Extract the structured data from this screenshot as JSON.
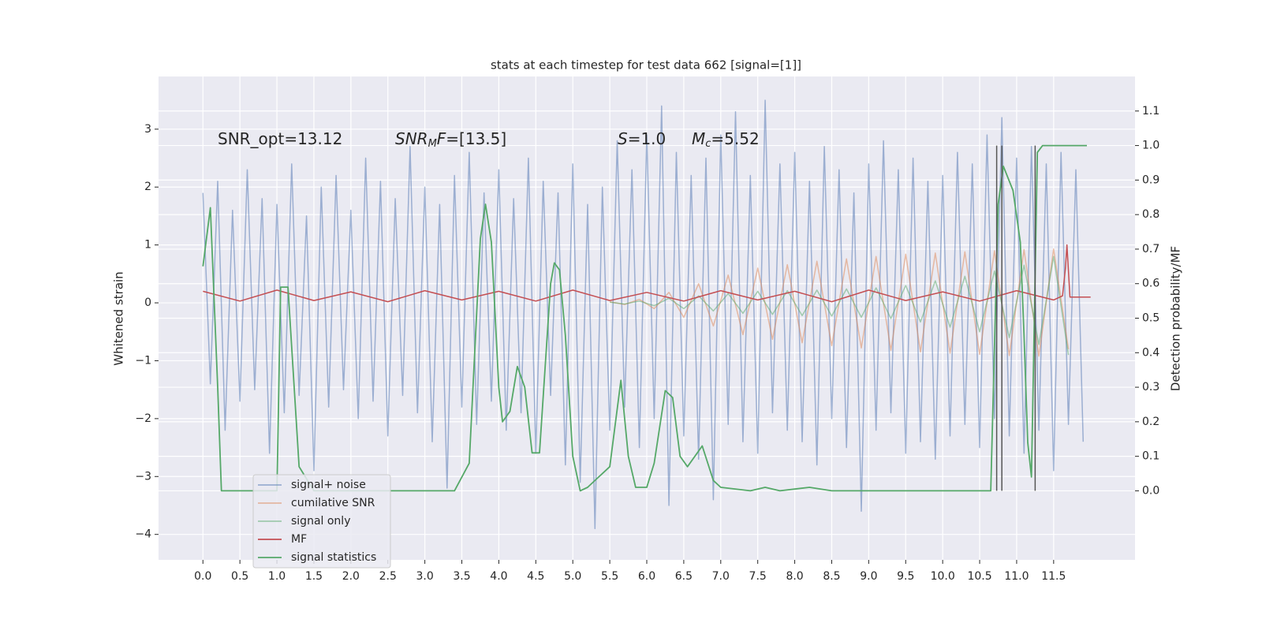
{
  "chart_data": {
    "type": "line",
    "title": "stats at each timestep for test data 662 [signal=[1]]",
    "y_label": "Whitened strain",
    "y2_label": "Detection probability/MF",
    "annotations": [
      [
        "SNR_opt=13.12"
      ],
      [
        "SNR",
        "M",
        "F",
        "=[13.5]"
      ],
      [
        "S",
        "=1.0"
      ],
      [
        "M",
        "c",
        "=5.52"
      ]
    ],
    "xlim": [
      -0.6,
      12.6
    ],
    "ylim": [
      -4.44,
      3.91
    ],
    "y2lim": [
      -0.2,
      1.2
    ],
    "xticks": [
      {
        "value": 0,
        "label": "0.0"
      },
      0.5,
      {
        "value": 1,
        "label": "1.0"
      },
      1.5,
      {
        "value": 2,
        "label": "2.0"
      },
      2.5,
      {
        "value": 3,
        "label": "3.0"
      },
      3.5,
      {
        "value": 4,
        "label": "4.0"
      },
      4.5,
      {
        "value": 5,
        "label": "5.0"
      },
      5.5,
      {
        "value": 6,
        "label": "6.0"
      },
      6.5,
      {
        "value": 7,
        "label": "7.0"
      },
      7.5,
      {
        "value": 8,
        "label": "8.0"
      },
      8.5,
      {
        "value": 9,
        "label": "9.0"
      },
      9.5,
      {
        "value": 10,
        "label": "10.0"
      },
      10.5,
      {
        "value": 11,
        "label": "11.0"
      },
      11.5
    ],
    "yticks": [
      {
        "value": -4,
        "label": "−4"
      },
      {
        "value": -3,
        "label": "−3"
      },
      {
        "value": -2,
        "label": "−2"
      },
      {
        "value": -1,
        "label": "−1"
      },
      0,
      1,
      2,
      3
    ],
    "y2ticks": [
      {
        "value": 0,
        "label": "0.0"
      },
      0.1,
      0.2,
      0.3,
      0.4,
      0.5,
      0.6,
      0.7,
      0.8,
      0.9,
      {
        "value": 1,
        "label": "1.0"
      },
      1.1
    ],
    "grid": true,
    "series": [
      {
        "name": "signal+ noise",
        "color": "#4c72b0",
        "opacity": 0.5,
        "x": [
          0.0,
          0.1,
          0.2,
          0.3,
          0.4,
          0.5,
          0.6,
          0.7,
          0.8,
          0.9,
          1.0,
          1.1,
          1.2,
          1.3,
          1.4,
          1.5,
          1.6,
          1.7,
          1.8,
          1.9,
          2.0,
          2.1,
          2.2,
          2.3,
          2.4,
          2.5,
          2.6,
          2.7,
          2.8,
          2.9,
          3.0,
          3.1,
          3.2,
          3.3,
          3.4,
          3.5,
          3.6,
          3.7,
          3.8,
          3.9,
          4.0,
          4.1,
          4.2,
          4.3,
          4.4,
          4.5,
          4.6,
          4.7,
          4.8,
          4.9,
          5.0,
          5.1,
          5.2,
          5.3,
          5.4,
          5.5,
          5.6,
          5.7,
          5.8,
          5.9,
          6.0,
          6.1,
          6.2,
          6.3,
          6.4,
          6.5,
          6.6,
          6.7,
          6.8,
          6.9,
          7.0,
          7.1,
          7.2,
          7.3,
          7.4,
          7.5,
          7.6,
          7.7,
          7.8,
          7.9,
          8.0,
          8.1,
          8.2,
          8.3,
          8.4,
          8.5,
          8.6,
          8.7,
          8.8,
          8.9,
          9.0,
          9.1,
          9.2,
          9.3,
          9.4,
          9.5,
          9.6,
          9.7,
          9.8,
          9.9,
          10.0,
          10.1,
          10.2,
          10.3,
          10.4,
          10.5,
          10.6,
          10.7,
          10.8,
          10.9,
          11.0,
          11.1,
          11.2,
          11.3,
          11.4,
          11.5,
          11.6,
          11.7,
          11.8,
          11.9
        ],
        "values": [
          1.9,
          -1.4,
          2.1,
          -2.2,
          1.6,
          -1.7,
          2.3,
          -1.5,
          1.8,
          -2.6,
          1.7,
          -1.9,
          2.4,
          -1.6,
          1.5,
          -2.9,
          2.0,
          -1.8,
          2.2,
          -1.5,
          1.6,
          -2.0,
          2.5,
          -1.7,
          2.1,
          -2.3,
          1.8,
          -1.6,
          2.7,
          -1.9,
          2.0,
          -2.4,
          1.7,
          -3.2,
          2.2,
          -1.8,
          2.6,
          -2.1,
          1.9,
          -1.7,
          2.3,
          -2.2,
          1.8,
          -1.9,
          2.5,
          -2.6,
          2.1,
          -1.6,
          1.9,
          -2.8,
          2.4,
          -3.1,
          1.7,
          -3.9,
          2.0,
          -2.2,
          2.8,
          -1.8,
          2.3,
          -2.5,
          2.9,
          -2.0,
          3.4,
          -3.5,
          2.6,
          -2.3,
          2.2,
          -2.7,
          2.5,
          -3.4,
          2.9,
          -2.1,
          3.3,
          -2.4,
          2.2,
          -2.6,
          3.5,
          -1.9,
          2.4,
          -2.2,
          2.6,
          -2.4,
          2.1,
          -2.8,
          2.7,
          -2.0,
          2.3,
          -2.5,
          1.9,
          -3.6,
          2.4,
          -2.2,
          2.8,
          -1.9,
          2.3,
          -2.6,
          2.5,
          -2.4,
          2.1,
          -2.7,
          2.2,
          -2.3,
          2.6,
          -2.1,
          2.4,
          -2.5,
          2.9,
          -2.0,
          3.2,
          -2.3,
          2.5,
          -2.6,
          2.7,
          -2.2,
          2.4,
          -2.9,
          2.6,
          -2.1,
          2.3,
          -2.4
        ]
      },
      {
        "name": "cumilative SNR",
        "color": "#dd8452",
        "opacity": 0.5,
        "x": [
          5.5,
          5.7,
          5.9,
          6.1,
          6.3,
          6.5,
          6.7,
          6.9,
          7.1,
          7.3,
          7.5,
          7.7,
          7.9,
          8.1,
          8.3,
          8.5,
          8.7,
          8.9,
          9.1,
          9.3,
          9.5,
          9.7,
          9.9,
          10.1,
          10.3,
          10.5,
          10.7,
          10.9,
          11.1,
          11.3,
          11.5,
          11.7
        ],
        "values": [
          0.02,
          -0.03,
          0.06,
          -0.1,
          0.18,
          -0.25,
          0.33,
          -0.4,
          0.48,
          -0.55,
          0.6,
          -0.63,
          0.66,
          -0.69,
          0.72,
          -0.74,
          0.76,
          -0.78,
          0.8,
          -0.82,
          0.84,
          -0.85,
          0.86,
          -0.87,
          0.88,
          -0.89,
          0.9,
          -0.91,
          0.92,
          -0.92,
          0.93,
          -0.8
        ]
      },
      {
        "name": "signal only",
        "color": "#55a868",
        "opacity": 0.5,
        "x": [
          5.5,
          5.7,
          5.9,
          6.1,
          6.3,
          6.5,
          6.7,
          6.9,
          7.1,
          7.3,
          7.5,
          7.7,
          7.9,
          8.1,
          8.3,
          8.5,
          8.7,
          8.9,
          9.1,
          9.3,
          9.5,
          9.7,
          9.9,
          10.1,
          10.3,
          10.5,
          10.7,
          10.9,
          11.1,
          11.3,
          11.5,
          11.7
        ],
        "values": [
          0.01,
          -0.02,
          0.03,
          -0.05,
          0.08,
          -0.1,
          0.12,
          -0.14,
          0.16,
          -0.18,
          0.2,
          -0.2,
          0.21,
          -0.22,
          0.22,
          -0.23,
          0.24,
          -0.25,
          0.26,
          -0.27,
          0.3,
          -0.33,
          0.38,
          -0.42,
          0.46,
          -0.5,
          0.55,
          -0.6,
          0.65,
          -0.72,
          0.8,
          -0.9
        ]
      },
      {
        "name": "MF",
        "color": "#c44e52",
        "opacity": 1,
        "x": [
          0.0,
          0.5,
          1.0,
          1.5,
          2.0,
          2.5,
          3.0,
          3.5,
          4.0,
          4.5,
          5.0,
          5.5,
          6.0,
          6.5,
          7.0,
          7.5,
          8.0,
          8.5,
          9.0,
          9.5,
          10.0,
          10.5,
          11.0,
          11.5,
          11.62,
          11.66,
          11.68,
          11.72,
          12.0
        ],
        "values": [
          0.2,
          0.03,
          0.22,
          0.04,
          0.19,
          0.02,
          0.21,
          0.05,
          0.2,
          0.03,
          0.22,
          0.04,
          0.18,
          0.03,
          0.21,
          0.05,
          0.2,
          0.02,
          0.22,
          0.04,
          0.19,
          0.03,
          0.21,
          0.05,
          0.12,
          0.6,
          1.0,
          0.1,
          0.1
        ]
      },
      {
        "name": "signal statistics",
        "color": "#55a868",
        "opacity": 1,
        "axis": "y2",
        "x": [
          0.0,
          0.1,
          0.2,
          0.25,
          0.5,
          1.0,
          1.05,
          1.15,
          1.3,
          1.5,
          3.4,
          3.6,
          3.75,
          3.82,
          3.9,
          4.0,
          4.05,
          4.15,
          4.25,
          4.35,
          4.45,
          4.55,
          4.7,
          4.75,
          4.82,
          4.9,
          5.0,
          5.1,
          5.2,
          5.35,
          5.5,
          5.65,
          5.75,
          5.85,
          6.0,
          6.1,
          6.25,
          6.35,
          6.45,
          6.55,
          6.75,
          6.9,
          7.0,
          7.4,
          7.6,
          7.8,
          8.2,
          8.5,
          9.5,
          10.5,
          10.65,
          10.75,
          10.82,
          10.95,
          11.05,
          11.1,
          11.15,
          11.2,
          11.28,
          11.35,
          11.95
        ],
        "values": [
          0.65,
          0.82,
          0.3,
          0.0,
          0.0,
          0.0,
          0.59,
          0.59,
          0.07,
          0.0,
          0.0,
          0.08,
          0.73,
          0.83,
          0.72,
          0.3,
          0.2,
          0.23,
          0.36,
          0.3,
          0.11,
          0.11,
          0.6,
          0.66,
          0.64,
          0.45,
          0.1,
          0.0,
          0.01,
          0.04,
          0.07,
          0.32,
          0.1,
          0.01,
          0.01,
          0.08,
          0.29,
          0.27,
          0.1,
          0.07,
          0.13,
          0.03,
          0.01,
          0.0,
          0.01,
          0.0,
          0.01,
          0.0,
          0.0,
          0.0,
          0.0,
          0.83,
          0.94,
          0.87,
          0.72,
          0.45,
          0.14,
          0.04,
          0.98,
          1.0,
          1.0
        ]
      }
    ],
    "vlines": {
      "color": "#555555",
      "axis": "y2",
      "lines": [
        {
          "x": 10.73,
          "ymin": 0,
          "ymax": 1.0
        },
        {
          "x": 10.8,
          "ymin": 0,
          "ymax": 1.0
        },
        {
          "x": 11.25,
          "ymin": 0,
          "ymax": 1.0
        }
      ]
    }
  }
}
